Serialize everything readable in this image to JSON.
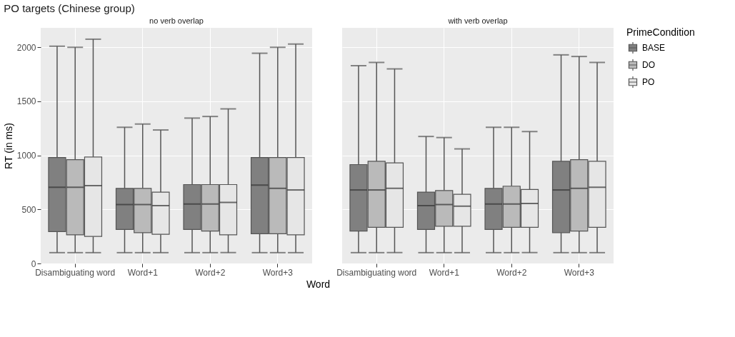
{
  "chart_data": [
    {
      "type": "box",
      "title": "PO targets (Chinese group)",
      "subtitle": "no verb overlap",
      "ylabel": "RT (in ms)",
      "xlabel": "Word",
      "categories": [
        "Disambiguating word",
        "Word+1",
        "Word+2",
        "Word+3"
      ],
      "ylim": [
        0,
        2180
      ],
      "yticks": [
        0,
        500,
        1000,
        1500,
        2000
      ],
      "grid": true,
      "legend": "right",
      "series": [
        {
          "name": "BASE",
          "color": "#808080",
          "boxes": [
            {
              "low": 100,
              "q1": 295,
              "median": 705,
              "q3": 980,
              "high": 2010
            },
            {
              "low": 100,
              "q1": 315,
              "median": 545,
              "q3": 695,
              "high": 1260
            },
            {
              "low": 100,
              "q1": 315,
              "median": 550,
              "q3": 730,
              "high": 1345
            },
            {
              "low": 100,
              "q1": 275,
              "median": 725,
              "q3": 980,
              "high": 1945
            }
          ]
        },
        {
          "name": "DO",
          "color": "#bababa",
          "boxes": [
            {
              "low": 100,
              "q1": 265,
              "median": 705,
              "q3": 960,
              "high": 2000
            },
            {
              "low": 100,
              "q1": 285,
              "median": 545,
              "q3": 695,
              "high": 1290
            },
            {
              "low": 100,
              "q1": 300,
              "median": 550,
              "q3": 730,
              "high": 1360
            },
            {
              "low": 100,
              "q1": 275,
              "median": 695,
              "q3": 980,
              "high": 2000
            }
          ]
        },
        {
          "name": "PO",
          "color": "#e6e6e6",
          "boxes": [
            {
              "low": 100,
              "q1": 250,
              "median": 720,
              "q3": 985,
              "high": 2075
            },
            {
              "low": 100,
              "q1": 270,
              "median": 535,
              "q3": 660,
              "high": 1235
            },
            {
              "low": 100,
              "q1": 265,
              "median": 565,
              "q3": 730,
              "high": 1430
            },
            {
              "low": 100,
              "q1": 265,
              "median": 680,
              "q3": 980,
              "high": 2030
            }
          ]
        }
      ]
    },
    {
      "type": "box",
      "subtitle": "with verb overlap",
      "legend_title": "PrimeCondition",
      "categories": [
        "Disambiguating word",
        "Word+1",
        "Word+2",
        "Word+3"
      ],
      "ylim": [
        0,
        2180
      ],
      "yticks": [
        0,
        500,
        1000,
        1500,
        2000
      ],
      "grid": true,
      "legend": "right",
      "tick_labels": "x",
      "series": [
        {
          "name": "BASE",
          "color": "#808080",
          "boxes": [
            {
              "low": 100,
              "q1": 300,
              "median": 680,
              "q3": 915,
              "high": 1830
            },
            {
              "low": 100,
              "q1": 315,
              "median": 535,
              "q3": 660,
              "high": 1175
            },
            {
              "low": 100,
              "q1": 315,
              "median": 550,
              "q3": 695,
              "high": 1260
            },
            {
              "low": 100,
              "q1": 285,
              "median": 680,
              "q3": 945,
              "high": 1930
            }
          ]
        },
        {
          "name": "DO",
          "color": "#bababa",
          "boxes": [
            {
              "low": 100,
              "q1": 335,
              "median": 680,
              "q3": 945,
              "high": 1860
            },
            {
              "low": 100,
              "q1": 345,
              "median": 545,
              "q3": 675,
              "high": 1165
            },
            {
              "low": 100,
              "q1": 335,
              "median": 550,
              "q3": 715,
              "high": 1260
            },
            {
              "low": 100,
              "q1": 300,
              "median": 695,
              "q3": 960,
              "high": 1915
            }
          ]
        },
        {
          "name": "PO",
          "color": "#e6e6e6",
          "boxes": [
            {
              "low": 100,
              "q1": 335,
              "median": 695,
              "q3": 930,
              "high": 1800
            },
            {
              "low": 100,
              "q1": 345,
              "median": 530,
              "q3": 640,
              "high": 1060
            },
            {
              "low": 100,
              "q1": 335,
              "median": 555,
              "q3": 685,
              "high": 1220
            },
            {
              "low": 100,
              "q1": 335,
              "median": 705,
              "q3": 945,
              "high": 1860
            }
          ]
        }
      ]
    }
  ]
}
